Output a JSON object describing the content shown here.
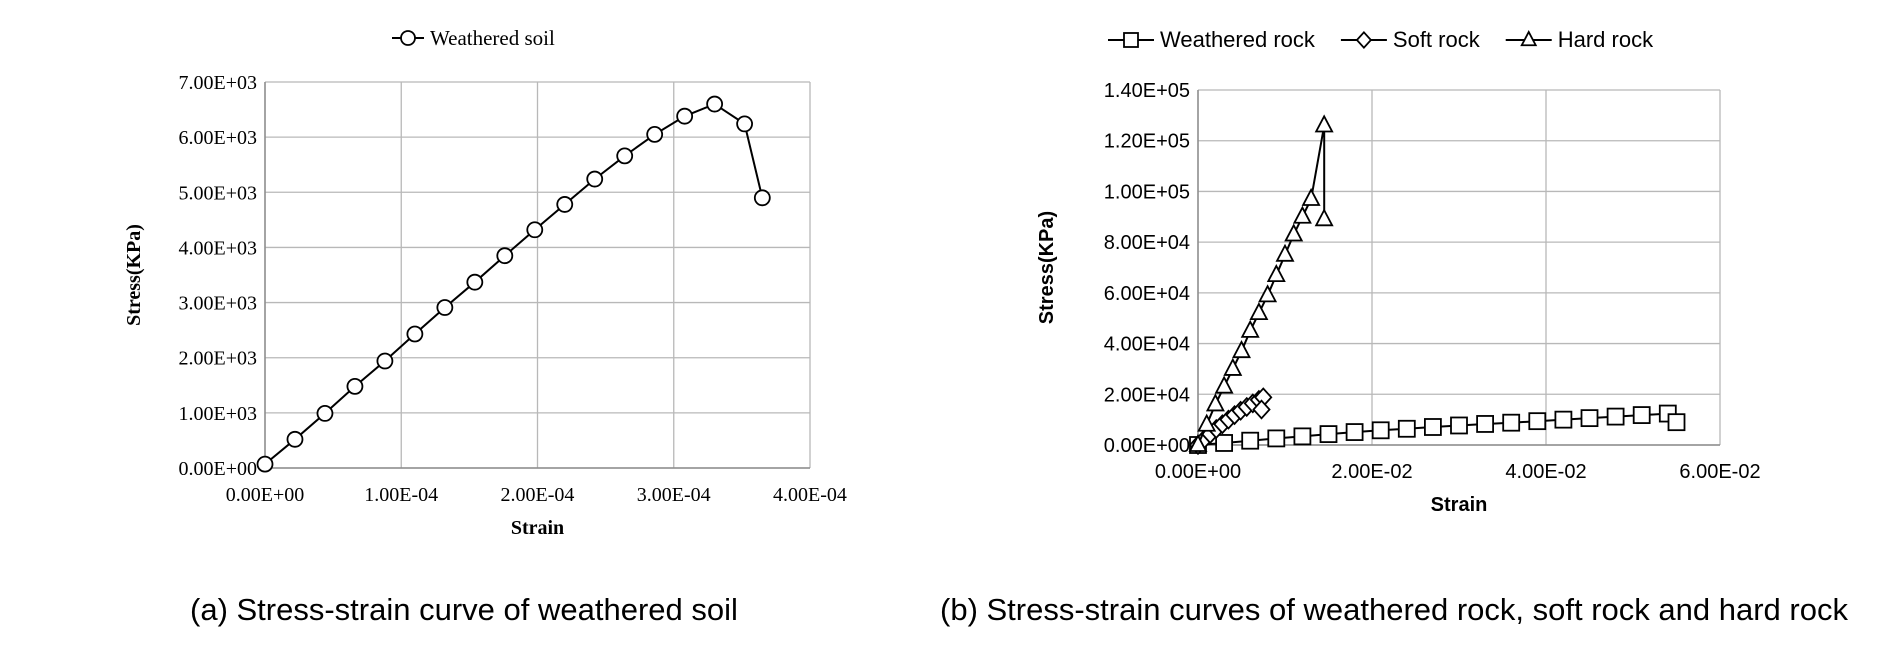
{
  "chart_data": [
    {
      "type": "line",
      "title": "",
      "xlabel": "Strain",
      "ylabel": "Stress(KPa)",
      "xlim": [
        0,
        0.0004
      ],
      "ylim": [
        0,
        7000
      ],
      "x_tick_values": [
        0,
        0.0001,
        0.0002,
        0.0003,
        0.0004
      ],
      "x_ticks": [
        "0.00E+00",
        "1.00E-04",
        "2.00E-04",
        "3.00E-04",
        "4.00E-04"
      ],
      "y_tick_values": [
        0,
        1000,
        2000,
        3000,
        4000,
        5000,
        6000,
        7000
      ],
      "y_ticks": [
        "0.00E+00",
        "1.00E+03",
        "2.00E+03",
        "3.00E+03",
        "4.00E+03",
        "5.00E+03",
        "6.00E+03",
        "7.00E+03"
      ],
      "grid": true,
      "legend_position": "top",
      "series": [
        {
          "name": "Weathered soil",
          "marker": "circle",
          "x": [
            0,
            2.2e-05,
            4.4e-05,
            6.6e-05,
            8.8e-05,
            0.00011,
            0.000132,
            0.000154,
            0.000176,
            0.000198,
            0.00022,
            0.000242,
            0.000264,
            0.000286,
            0.000308,
            0.00033,
            0.000352,
            0.000365
          ],
          "y": [
            70,
            520,
            990,
            1480,
            1940,
            2430,
            2910,
            3370,
            3850,
            4320,
            4780,
            5240,
            5660,
            6050,
            6380,
            6600,
            6240,
            4900
          ]
        }
      ]
    },
    {
      "type": "line",
      "title": "",
      "xlabel": "Strain",
      "ylabel": "Stress(KPa)",
      "xlim": [
        0,
        0.06
      ],
      "ylim": [
        0,
        140000
      ],
      "x_tick_values": [
        0,
        0.02,
        0.04,
        0.06
      ],
      "x_ticks": [
        "0.00E+00",
        "2.00E-02",
        "4.00E-02",
        "6.00E-02"
      ],
      "y_tick_values": [
        0,
        20000,
        40000,
        60000,
        80000,
        100000,
        120000,
        140000
      ],
      "y_ticks": [
        "0.00E+00",
        "2.00E+04",
        "4.00E+04",
        "6.00E+04",
        "8.00E+04",
        "1.00E+05",
        "1.20E+05",
        "1.40E+05"
      ],
      "grid": true,
      "legend_position": "top",
      "series": [
        {
          "name": "Weathered rock",
          "marker": "square",
          "x": [
            0,
            0.003,
            0.006,
            0.009,
            0.012,
            0.015,
            0.018,
            0.021,
            0.024,
            0.027,
            0.03,
            0.033,
            0.036,
            0.039,
            0.042,
            0.045,
            0.048,
            0.051,
            0.054,
            0.055
          ],
          "y": [
            0,
            800,
            1700,
            2600,
            3400,
            4300,
            5100,
            5800,
            6400,
            7100,
            7700,
            8300,
            8800,
            9400,
            10000,
            10600,
            11200,
            11800,
            12400,
            9000
          ]
        },
        {
          "name": "Soft rock",
          "marker": "diamond",
          "x": [
            0,
            0.0007,
            0.0014,
            0.0021,
            0.0028,
            0.0035,
            0.0042,
            0.0049,
            0.0056,
            0.0063,
            0.007,
            0.0075,
            0.0073
          ],
          "y": [
            0,
            2200,
            4300,
            6300,
            8200,
            10000,
            11800,
            13500,
            15000,
            16400,
            17800,
            18800,
            14000
          ]
        },
        {
          "name": "Hard rock",
          "marker": "triangle",
          "x": [
            0,
            0.001,
            0.002,
            0.003,
            0.004,
            0.005,
            0.006,
            0.007,
            0.008,
            0.009,
            0.01,
            0.011,
            0.012,
            0.013,
            0.0145,
            0.0145
          ],
          "y": [
            0,
            8000,
            16000,
            23000,
            30000,
            37000,
            45000,
            52000,
            59000,
            67000,
            75000,
            83000,
            90000,
            97000,
            126000,
            89000
          ]
        }
      ]
    }
  ],
  "captions": {
    "a": "(a)  Stress-strain  curve  of  weathered  soil",
    "b": "(b) Stress-strain curves of weathered rock, soft rock and hard rock"
  }
}
